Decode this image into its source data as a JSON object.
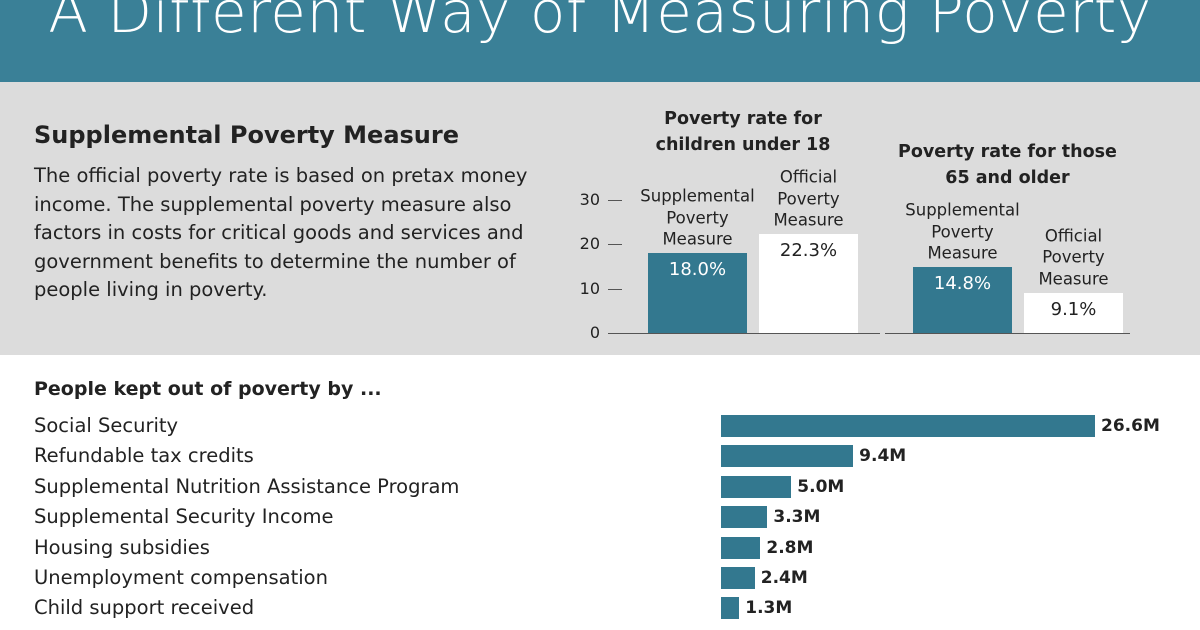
{
  "title": "A Different Way of Measuring Poverty",
  "intro": {
    "heading": "Supplemental Poverty Measure",
    "text": "The official poverty rate is based on pretax money income. The supplemental poverty measure also factors in costs for critical goods and services and government benefits to determine the number of people living in poverty."
  },
  "chart_data": [
    {
      "type": "grouped-bar",
      "ylim": [
        0,
        30
      ],
      "yticks": [
        0,
        10,
        20,
        30
      ],
      "colors": [
        "#33788f",
        "#ffffff"
      ],
      "panels": [
        {
          "title": "Poverty rate for children under 18",
          "categories": [
            "Supplemental Poverty Measure",
            "Official Poverty Measure"
          ],
          "values": [
            18.0,
            22.3
          ],
          "value_labels": [
            "18.0%",
            "22.3%"
          ]
        },
        {
          "title": "Poverty rate for those 65 and older",
          "categories": [
            "Supplemental Poverty Measure",
            "Official Poverty Measure"
          ],
          "values": [
            14.8,
            9.1
          ],
          "value_labels": [
            "14.8%",
            "9.1%"
          ]
        }
      ]
    },
    {
      "type": "hbar",
      "title": "People kept out of poverty by ...",
      "color": "#33788f",
      "categories": [
        "Social Security",
        "Refundable tax credits",
        "Supplemental Nutrition Assistance Program",
        "Supplemental Security Income",
        "Housing subsidies",
        "Unemployment compensation",
        "Child support received"
      ],
      "values": [
        26.6,
        9.4,
        5.0,
        3.3,
        2.8,
        2.4,
        1.3
      ],
      "value_labels": [
        "26.6M",
        "9.4M",
        "5.0M",
        "3.3M",
        "2.8M",
        "2.4M",
        "1.3M"
      ]
    }
  ]
}
